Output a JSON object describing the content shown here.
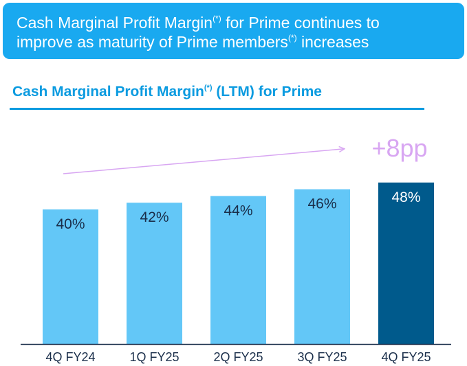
{
  "banner": {
    "line1_a": "Cash Marginal Profit Margin",
    "line1_sup": "(*)",
    "line1_b": " for Prime continues to",
    "line2_a": "improve as maturity of Prime members",
    "line2_sup": "(*)",
    "line2_b": " increases"
  },
  "section_title": {
    "text_a": "Cash Marginal Profit Margin",
    "sup": "(*)",
    "text_b": " (LTM) for Prime"
  },
  "chart_data": {
    "type": "bar",
    "categories": [
      "4Q FY24",
      "1Q FY25",
      "2Q FY25",
      "3Q FY25",
      "4Q FY25"
    ],
    "values": [
      40,
      42,
      44,
      46,
      48
    ],
    "data_labels": [
      "40%",
      "42%",
      "44%",
      "46%",
      "48%"
    ],
    "unit": "%",
    "ylim": [
      0,
      48
    ],
    "grid": false,
    "annotation": "+8pp",
    "colors": {
      "bar": "#63c7f7",
      "highlight_bar": "#005a8c",
      "highlight_index": 4,
      "bar_label": "#1a2e4a",
      "highlight_label": "#ffffff",
      "annotation": "#d8a6f2",
      "axis": "#1a2e4a"
    }
  }
}
